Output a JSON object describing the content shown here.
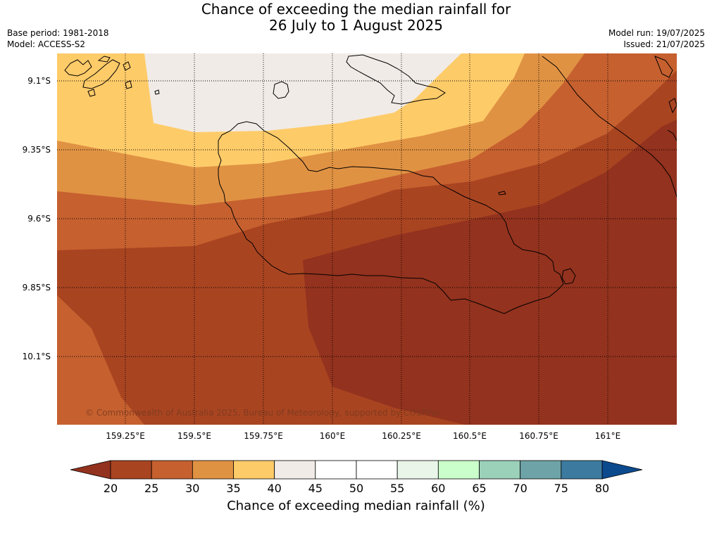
{
  "title_line1": "Chance of exceeding the median rainfall for",
  "title_line2": "26 July to 1 August 2025",
  "base_period": "Base period: 1981-2018",
  "model": "Model: ACCESS-S2",
  "model_run": "Model run: 19/07/2025",
  "issued": "Issued: 21/07/2025",
  "lat_labels": [
    "9.1°S",
    "9.35°S",
    "9.6°S",
    "9.85°S",
    "10.1°S"
  ],
  "lon_labels": [
    "159.25°E",
    "159.5°E",
    "159.75°E",
    "160°E",
    "160.25°E",
    "160.5°E",
    "160.75°E",
    "161°E"
  ],
  "copyright": "© Commonwealth of Australia 2025, Bureau of Meteorology, supported by COSPPac",
  "colorbar": {
    "title": "Chance of exceeding median rainfall (%)",
    "labels": [
      "20",
      "25",
      "30",
      "35",
      "40",
      "45",
      "50",
      "55",
      "60",
      "65",
      "70",
      "75",
      "80"
    ],
    "colors": [
      "#a94421",
      "#c6602f",
      "#e09243",
      "#fecb69",
      "#f0ebe6",
      "#ffffff",
      "#ffffff",
      "#e8f5e8",
      "#cafeca",
      "#9bd0b9",
      "#6ea3a7",
      "#3c7b9f"
    ],
    "under_color": "#93321e",
    "over_color": "#0c4a8e"
  }
}
